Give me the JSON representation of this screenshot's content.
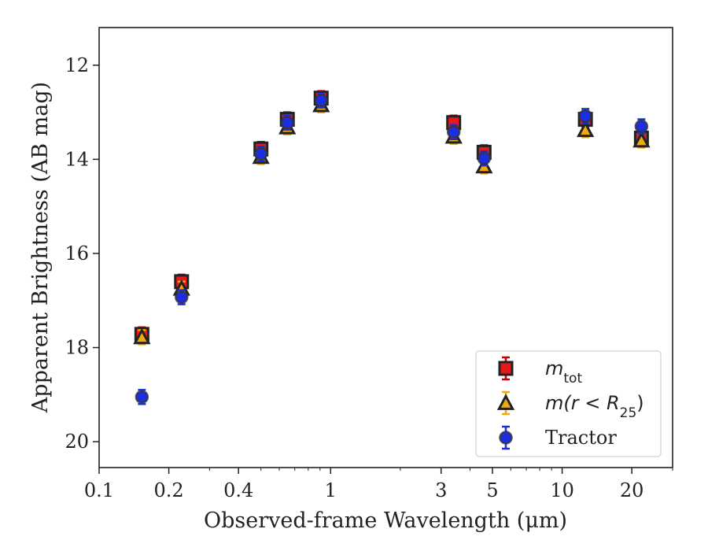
{
  "chart_data": {
    "type": "scatter",
    "xlabel": "Observed-frame Wavelength (μm)",
    "ylabel": "Apparent Brightness (AB mag)",
    "xscale": "log",
    "yaxis_inverted": true,
    "xlim": [
      0.1,
      30
    ],
    "ylim": [
      20.55,
      11.2
    ],
    "xticks": [
      {
        "value": 0.1,
        "label": "0.1"
      },
      {
        "value": 0.2,
        "label": "0.2"
      },
      {
        "value": 0.4,
        "label": "0.4"
      },
      {
        "value": 1,
        "label": "1"
      },
      {
        "value": 3,
        "label": "3"
      },
      {
        "value": 5,
        "label": "5"
      },
      {
        "value": 10,
        "label": "10"
      },
      {
        "value": 20,
        "label": "20"
      }
    ],
    "yticks": [
      {
        "value": 12,
        "label": "12"
      },
      {
        "value": 14,
        "label": "14"
      },
      {
        "value": 16,
        "label": "16"
      },
      {
        "value": 18,
        "label": "18"
      },
      {
        "value": 20,
        "label": "20"
      }
    ],
    "legend_position": "lower right",
    "series": [
      {
        "name": "m_tot",
        "legend_main": "m",
        "legend_sub": "tot",
        "marker": "square",
        "color": "#e8191a",
        "edge": "#222222",
        "errbar": "#cc0000",
        "x": [
          0.153,
          0.227,
          0.5,
          0.65,
          0.91,
          3.4,
          4.6,
          12.6,
          22.0
        ],
        "y": [
          17.72,
          16.6,
          13.78,
          13.15,
          12.7,
          13.22,
          13.85,
          13.15,
          13.55
        ]
      },
      {
        "name": "m(r < R25)",
        "legend_main": "m(r < R",
        "legend_sub": "25",
        "legend_tail": ")",
        "marker": "triangle",
        "color": "#f2a90c",
        "edge": "#222222",
        "errbar": "#f2a90c",
        "x": [
          0.153,
          0.227,
          0.5,
          0.65,
          0.91,
          3.4,
          4.6,
          12.6,
          22.0
        ],
        "y": [
          17.78,
          16.75,
          13.95,
          13.32,
          12.85,
          13.52,
          14.15,
          13.38,
          13.6
        ]
      },
      {
        "name": "Tractor",
        "legend_main": "Tractor",
        "marker": "circle",
        "color": "#1b2ee0",
        "edge": "#333333",
        "errbar": "#1b2ee0",
        "x": [
          0.153,
          0.227,
          0.5,
          0.65,
          0.91,
          3.4,
          4.6,
          12.6,
          22.0
        ],
        "y": [
          19.05,
          16.93,
          13.88,
          13.22,
          12.75,
          13.42,
          13.98,
          13.08,
          13.3
        ]
      }
    ]
  }
}
